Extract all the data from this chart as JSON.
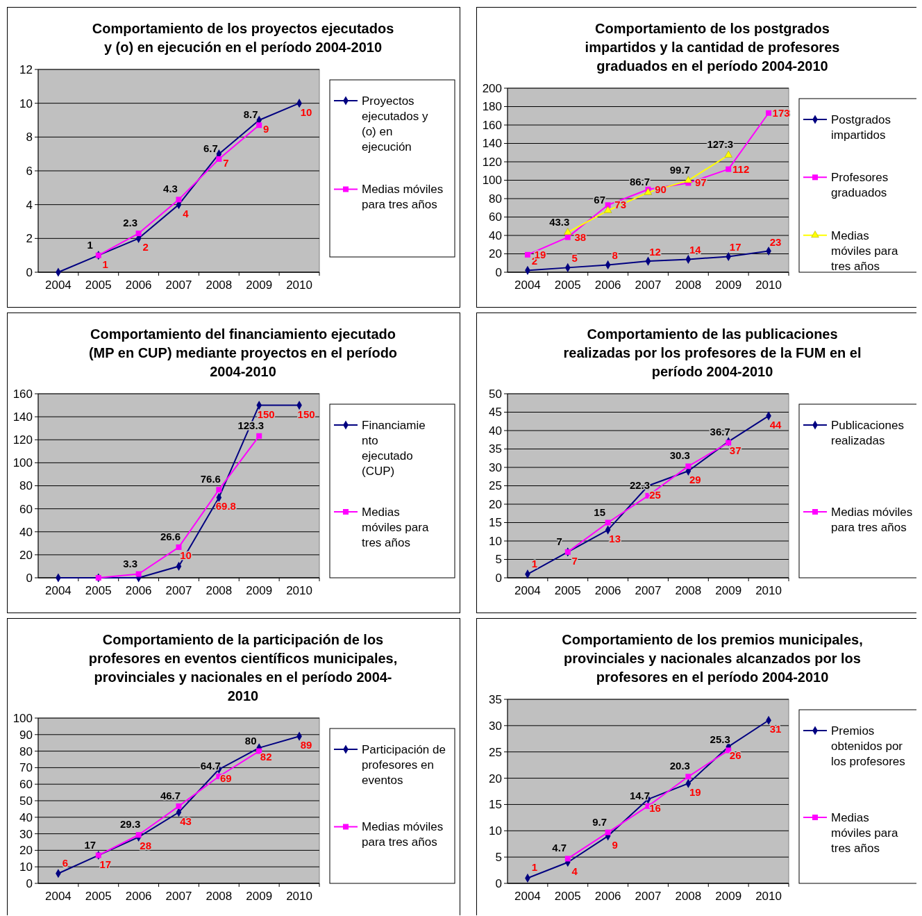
{
  "chart_data": [
    {
      "type": "line",
      "title": "Comportamiento  de los proyectos ejecutados\ny (o) en ejecución en el período 2004-2010",
      "categories": [
        "2004",
        "2005",
        "2006",
        "2007",
        "2008",
        "2009",
        "2010"
      ],
      "ylim": [
        0,
        12
      ],
      "yticks": [
        0,
        2,
        4,
        6,
        8,
        10,
        12
      ],
      "grid": "y",
      "legend": "right",
      "series": [
        {
          "name": "Proyectos\nejecutados y\n(o) en\nejecución",
          "color": "#000080",
          "marker": "diamond",
          "values": [
            0,
            1,
            2,
            4,
            7,
            9,
            10
          ],
          "value_labels": [
            null,
            "1",
            "2",
            "4",
            "7",
            "9",
            "10"
          ]
        },
        {
          "name": "Medias móviles\npara tres años",
          "color": "#ff00ff",
          "marker": "square",
          "values": [
            null,
            1,
            2.3,
            4.3,
            6.7,
            8.7,
            null
          ],
          "value_labels": [
            null,
            "1",
            "2.3",
            "4.3",
            "6.7",
            "8.7",
            null
          ]
        }
      ]
    },
    {
      "type": "line",
      "title": "Comportamiento  de los postgrados\nimpartidos y la cantidad de profesores\ngraduados en el período 2004-2010",
      "categories": [
        "2004",
        "2005",
        "2006",
        "2007",
        "2008",
        "2009",
        "2010"
      ],
      "ylim": [
        0,
        200
      ],
      "yticks": [
        0,
        20,
        40,
        60,
        80,
        100,
        120,
        140,
        160,
        180,
        200
      ],
      "grid": "y",
      "legend": "right",
      "series": [
        {
          "name": "Postgrados\nimpartidos",
          "color": "#000080",
          "marker": "diamond",
          "values": [
            2,
            5,
            8,
            12,
            14,
            17,
            23
          ],
          "value_labels": [
            "2",
            "5",
            "8",
            "12",
            "14",
            "17",
            "23"
          ]
        },
        {
          "name": "Profesores\ngraduados",
          "color": "#ff00ff",
          "marker": "square",
          "values": [
            19,
            38,
            73,
            90,
            97,
            112,
            173
          ],
          "value_labels": [
            "19",
            "38",
            "73",
            "90",
            "97",
            "112",
            "173"
          ]
        },
        {
          "name": "Medias\nmóviles para\ntres años",
          "color": "#ffff00",
          "marker": "triangle",
          "values": [
            null,
            43.3,
            67,
            86.7,
            99.7,
            127.3,
            null
          ],
          "value_labels": [
            null,
            "43.3",
            "67",
            "86.7",
            "99.7",
            "127.3",
            null
          ]
        }
      ]
    },
    {
      "type": "line",
      "title": "Comportamiento  del financiamiento ejecutado\n(MP en CUP) mediante proyectos en el período\n2004-2010",
      "categories": [
        "2004",
        "2005",
        "2006",
        "2007",
        "2008",
        "2009",
        "2010"
      ],
      "ylim": [
        0,
        160
      ],
      "yticks": [
        0,
        20,
        40,
        60,
        80,
        100,
        120,
        140,
        160
      ],
      "grid": "y",
      "legend": "right",
      "series": [
        {
          "name": "Financiamie\nnto\nejecutado\n(CUP)",
          "color": "#000080",
          "marker": "diamond",
          "values": [
            0,
            0,
            0,
            10,
            69.8,
            150,
            150
          ],
          "value_labels": [
            null,
            null,
            null,
            "10",
            "69.8",
            "150",
            "150"
          ]
        },
        {
          "name": "Medias\nmóviles para\ntres años",
          "color": "#ff00ff",
          "marker": "square",
          "values": [
            null,
            0,
            3.3,
            26.6,
            76.6,
            123.3,
            null
          ],
          "value_labels": [
            null,
            null,
            "3.3",
            "26.6",
            "76.6",
            "123.3",
            null
          ]
        }
      ]
    },
    {
      "type": "line",
      "title": "Comportamiento  de las publicaciones\nrealizadas por los profesores de la FUM en el\nperíodo 2004-2010",
      "categories": [
        "2004",
        "2005",
        "2006",
        "2007",
        "2008",
        "2009",
        "2010"
      ],
      "ylim": [
        0,
        50
      ],
      "yticks": [
        0,
        5,
        10,
        15,
        20,
        25,
        30,
        35,
        40,
        45,
        50
      ],
      "grid": "y",
      "legend": "right",
      "series": [
        {
          "name": "Publicaciones\nrealizadas",
          "color": "#000080",
          "marker": "diamond",
          "values": [
            1,
            7,
            13,
            25,
            29,
            37,
            44
          ],
          "value_labels": [
            "1",
            "7",
            "13",
            "25",
            "29",
            "37",
            "44"
          ]
        },
        {
          "name": "Medias móviles\npara tres años",
          "color": "#ff00ff",
          "marker": "square",
          "values": [
            null,
            7,
            15,
            22.3,
            30.3,
            36.7,
            null
          ],
          "value_labels": [
            null,
            "7",
            "15",
            "22.3",
            "30.3",
            "36.7",
            null
          ]
        }
      ]
    },
    {
      "type": "line",
      "title": "Comportamiento  de la participación de los\nprofesores en eventos científicos municipales,\nprovinciales y nacionales en el período 2004-\n2010",
      "categories": [
        "2004",
        "2005",
        "2006",
        "2007",
        "2008",
        "2009",
        "2010"
      ],
      "ylim": [
        0,
        100
      ],
      "yticks": [
        0,
        10,
        20,
        30,
        40,
        50,
        60,
        70,
        80,
        90,
        100
      ],
      "grid": "y",
      "legend": "right",
      "series": [
        {
          "name": "Participación de\nprofesores en\neventos",
          "color": "#000080",
          "marker": "diamond",
          "values": [
            6,
            17,
            28,
            43,
            69,
            82,
            89
          ],
          "value_labels": [
            "6",
            "17",
            "28",
            "43",
            "69",
            "82",
            "89"
          ]
        },
        {
          "name": "Medias móviles\npara tres años",
          "color": "#ff00ff",
          "marker": "square",
          "values": [
            null,
            17,
            29.3,
            46.7,
            64.7,
            80,
            null
          ],
          "value_labels": [
            null,
            "17",
            "29.3",
            "46.7",
            "64.7",
            "80",
            null
          ]
        }
      ]
    },
    {
      "type": "line",
      "title": "Comportamiento  de los premios municipales,\nprovinciales y nacionales alcanzados por los\nprofesores en el período 2004-2010",
      "categories": [
        "2004",
        "2005",
        "2006",
        "2007",
        "2008",
        "2009",
        "2010"
      ],
      "ylim": [
        0,
        35
      ],
      "yticks": [
        0,
        5,
        10,
        15,
        20,
        25,
        30,
        35
      ],
      "grid": "y",
      "legend": "right",
      "series": [
        {
          "name": "Premios\nobtenidos por\nlos profesores",
          "color": "#000080",
          "marker": "diamond",
          "values": [
            1,
            4,
            9,
            16,
            19,
            26,
            31
          ],
          "value_labels": [
            "1",
            "4",
            "9",
            "16",
            "19",
            "26",
            "31"
          ]
        },
        {
          "name": "Medias\nmóviles para\ntres años",
          "color": "#ff00ff",
          "marker": "square",
          "values": [
            null,
            4.7,
            9.7,
            14.7,
            20.3,
            25.3,
            null
          ],
          "value_labels": [
            null,
            "4.7",
            "9.7",
            "14.7",
            "20.3",
            "25.3",
            null
          ]
        }
      ]
    }
  ]
}
